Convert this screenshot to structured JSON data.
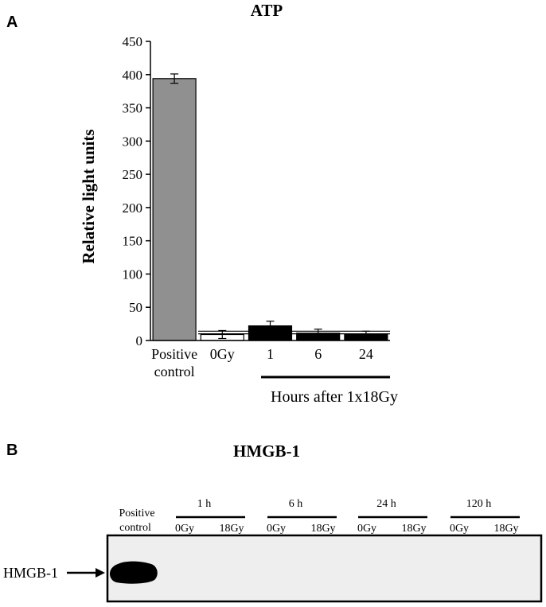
{
  "panel_a": {
    "letter": "A",
    "chart_data": {
      "type": "bar",
      "title": "ATP",
      "ylabel": "Relative light units",
      "xlabel": "Hours after 1x18Gy",
      "ylim": [
        0,
        450
      ],
      "yticks": [
        "0",
        "50",
        "100",
        "150",
        "200",
        "250",
        "300",
        "350",
        "400",
        "450"
      ],
      "categories": [
        "Positive control",
        "0Gy",
        "1",
        "6",
        "24"
      ],
      "category_lines": [
        [
          "Positive",
          "control"
        ],
        [
          "0Gy"
        ],
        [
          "1"
        ],
        [
          "6"
        ],
        [
          "24"
        ]
      ],
      "values": [
        394,
        9,
        22,
        11,
        9
      ],
      "errors": [
        7,
        6,
        7,
        6,
        5
      ],
      "colors": [
        "#909090",
        "#ffffff",
        "#000000",
        "#000000",
        "#000000"
      ],
      "reference_lines": [
        10,
        14
      ],
      "grid": false
    }
  },
  "panel_b": {
    "letter": "B",
    "title": "HMGB-1",
    "positive_control": [
      "Positive",
      "control"
    ],
    "row_label": "HMGB-1",
    "time_groups": [
      {
        "label": "1 h",
        "lanes": [
          "0Gy",
          "18Gy"
        ]
      },
      {
        "label": "6 h",
        "lanes": [
          "0Gy",
          "18Gy"
        ]
      },
      {
        "label": "24 h",
        "lanes": [
          "0Gy",
          "18Gy"
        ]
      },
      {
        "label": "120 h",
        "lanes": [
          "0Gy",
          "18Gy"
        ]
      }
    ],
    "blot_background": "#eeeeee",
    "band_color": "#000000"
  }
}
